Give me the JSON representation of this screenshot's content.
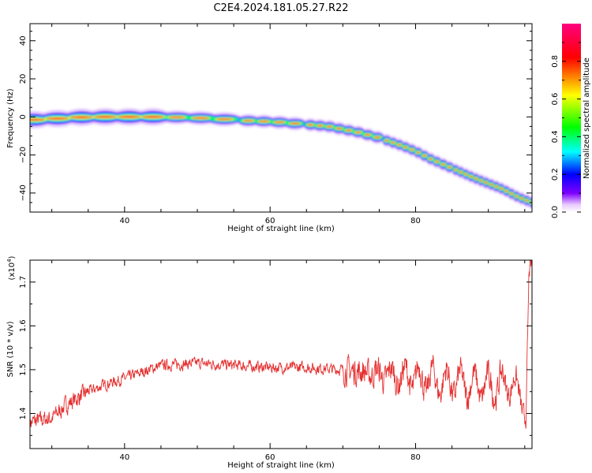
{
  "title": "C2E4.2024.181.05.27.R22",
  "chart_data": [
    {
      "type": "heatmap",
      "xlabel": "Height of straight line (km)",
      "ylabel": "Frequency (Hz)",
      "xlim": [
        27,
        96
      ],
      "ylim": [
        -50,
        49
      ],
      "xticks": [
        40,
        60,
        80
      ],
      "yticks": [
        40,
        20,
        0,
        -20,
        -40
      ],
      "ridge": {
        "x": [
          27,
          28,
          30,
          35,
          40,
          45,
          50,
          55,
          57,
          60,
          62,
          65,
          68,
          70,
          72,
          75,
          78,
          80,
          82,
          85,
          88,
          90,
          92,
          94,
          96
        ],
        "y": [
          -1,
          -2,
          -1,
          0,
          0,
          0,
          -0.5,
          -1.5,
          -2,
          -2.5,
          -3,
          -4,
          -5,
          -6.5,
          -8,
          -11,
          -15,
          -18,
          -22,
          -27,
          -32,
          -35,
          -38,
          -42,
          -45
        ]
      },
      "colorbar": {
        "label": "Normalized spectral amplitude",
        "range": [
          0.0,
          1.0
        ],
        "ticks": [
          "0.0",
          "0.2",
          "0.4",
          "0.6",
          "0.8"
        ],
        "colors": [
          "#ffffff",
          "#7f00ff",
          "#0000ff",
          "#00ffff",
          "#00ff00",
          "#ffff00",
          "#ff0000",
          "#ff0080"
        ]
      }
    },
    {
      "type": "line",
      "xlabel": "Height of straight line (km)",
      "ylabel": "SNR (10 * v/v)",
      "scale_label": "(x10",
      "scale_exp": "4",
      "scale_close": ")",
      "xlim": [
        27,
        96
      ],
      "ylim": [
        1.32,
        1.75
      ],
      "xticks": [
        40,
        60,
        80
      ],
      "yticks": [
        1.4,
        1.5,
        1.6,
        1.7
      ],
      "line_color": "#e53030",
      "baseline": {
        "x": [
          27,
          30,
          32,
          35,
          38,
          40,
          45,
          50,
          55,
          60,
          65,
          70,
          75,
          80,
          85,
          90,
          93,
          94.5,
          95.2,
          95.6,
          96
        ],
        "y": [
          1.38,
          1.39,
          1.42,
          1.45,
          1.47,
          1.48,
          1.51,
          1.515,
          1.51,
          1.505,
          1.505,
          1.5,
          1.49,
          1.48,
          1.47,
          1.46,
          1.47,
          1.44,
          1.4,
          1.7,
          1.72
        ]
      }
    }
  ]
}
